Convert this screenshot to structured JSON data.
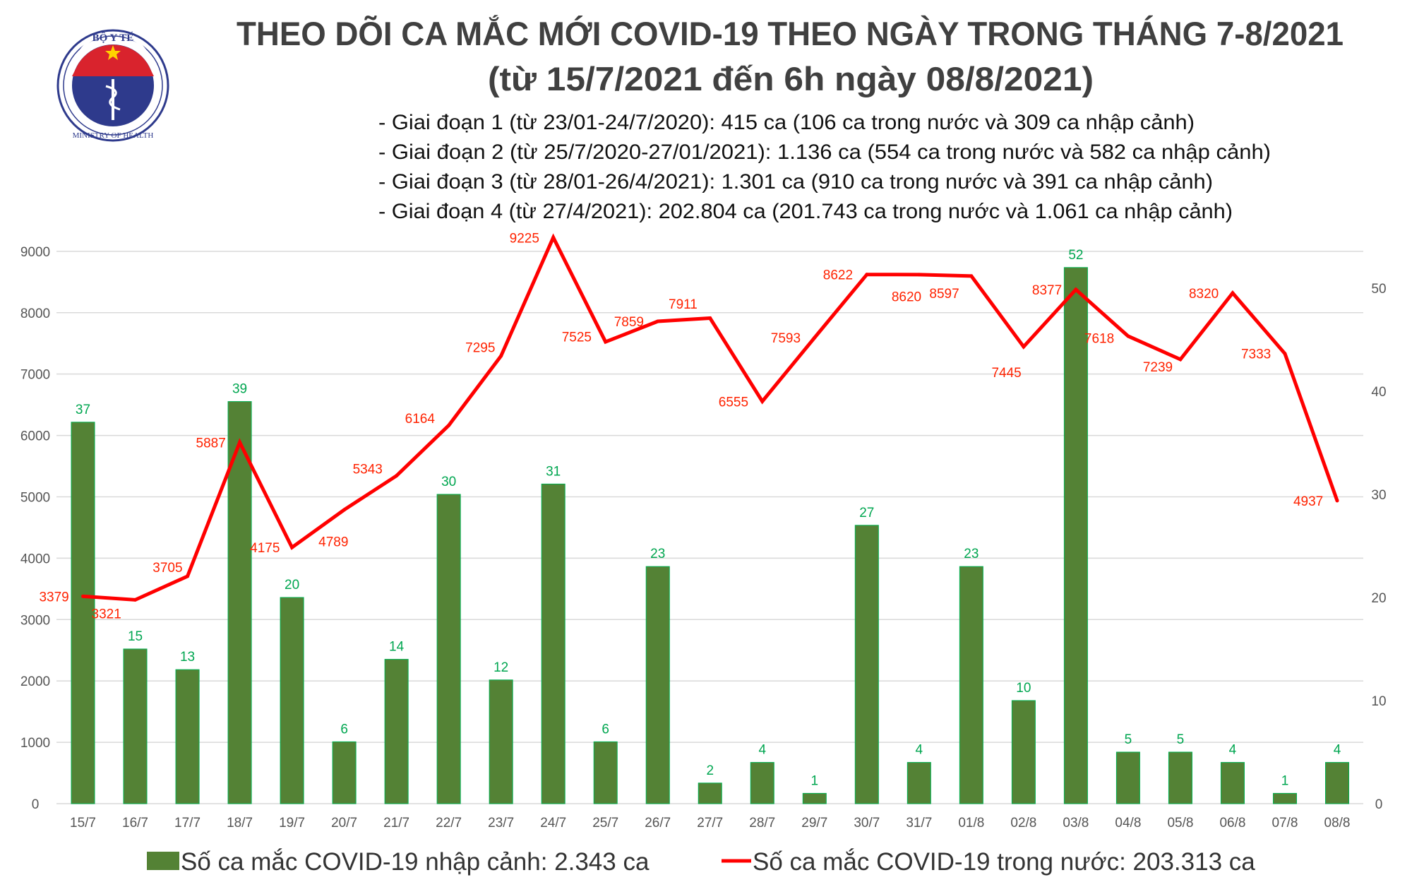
{
  "header": {
    "title_line1": "THEO DÕI CA MẮC MỚI COVID-19 THEO NGÀY TRONG THÁNG 7-8/2021",
    "title_line2": "(từ 15/7/2021 đến 6h ngày 08/8/2021)",
    "bullets": [
      "- Giai đoạn 1 (từ 23/01-24/7/2020): 415 ca (106 ca trong nước và 309 ca nhập cảnh)",
      "- Giai đoạn 2 (từ 25/7/2020-27/01/2021): 1.136 ca (554 ca trong nước và 582 ca nhập cảnh)",
      "- Giai đoạn 3 (từ 28/01-26/4/2021): 1.301 ca (910 ca trong nước và 391 ca nhập cảnh)",
      "- Giai đoạn 4 (từ 27/4/2021): 202.804 ca (201.743 ca trong nước và 1.061 ca nhập cảnh)"
    ]
  },
  "logo": {
    "top_text": "BỘ Y TẾ",
    "bottom_text": "MINISTRY OF HEALTH"
  },
  "colors": {
    "bar": "#548235",
    "bar_edge": "#00b050",
    "bar_label": "#00a650",
    "line": "#ff0000",
    "line_label": "#ff2200",
    "grid": "#d9d9d9"
  },
  "chart_data": {
    "type": "bar+line",
    "categories": [
      "15/7",
      "16/7",
      "17/7",
      "18/7",
      "19/7",
      "20/7",
      "21/7",
      "22/7",
      "23/7",
      "24/7",
      "25/7",
      "26/7",
      "27/7",
      "28/7",
      "29/7",
      "30/7",
      "31/7",
      "01/8",
      "02/8",
      "03/8",
      "04/8",
      "05/8",
      "06/8",
      "07/8",
      "08/8"
    ],
    "series": [
      {
        "name": "Số ca mắc COVID-19 nhập cảnh: 2.343 ca",
        "type": "bar",
        "axis": "right",
        "values": [
          37,
          15,
          13,
          39,
          20,
          6,
          14,
          30,
          12,
          31,
          6,
          23,
          2,
          4,
          1,
          27,
          4,
          23,
          10,
          52,
          5,
          5,
          4,
          1,
          4
        ]
      },
      {
        "name": "Số ca mắc COVID-19 trong nước: 203.313 ca",
        "type": "line",
        "axis": "left",
        "values": [
          3379,
          3321,
          3705,
          5887,
          4175,
          4789,
          5343,
          6164,
          7295,
          9225,
          7525,
          7859,
          7911,
          6555,
          7593,
          8622,
          8620,
          8597,
          7445,
          8377,
          7618,
          7239,
          8320,
          7333,
          4937
        ]
      }
    ],
    "left_axis": {
      "ylim": [
        0,
        9240
      ],
      "ticks": [
        "0",
        "1000",
        "2000",
        "3000",
        "4000",
        "5000",
        "6000",
        "7000",
        "8000",
        "9000"
      ]
    },
    "right_axis": {
      "ylim": [
        0,
        55
      ],
      "ticks": [
        "0",
        "10",
        "20",
        "30",
        "40",
        "50"
      ]
    },
    "grid": true,
    "legend_placement": "bottom"
  }
}
